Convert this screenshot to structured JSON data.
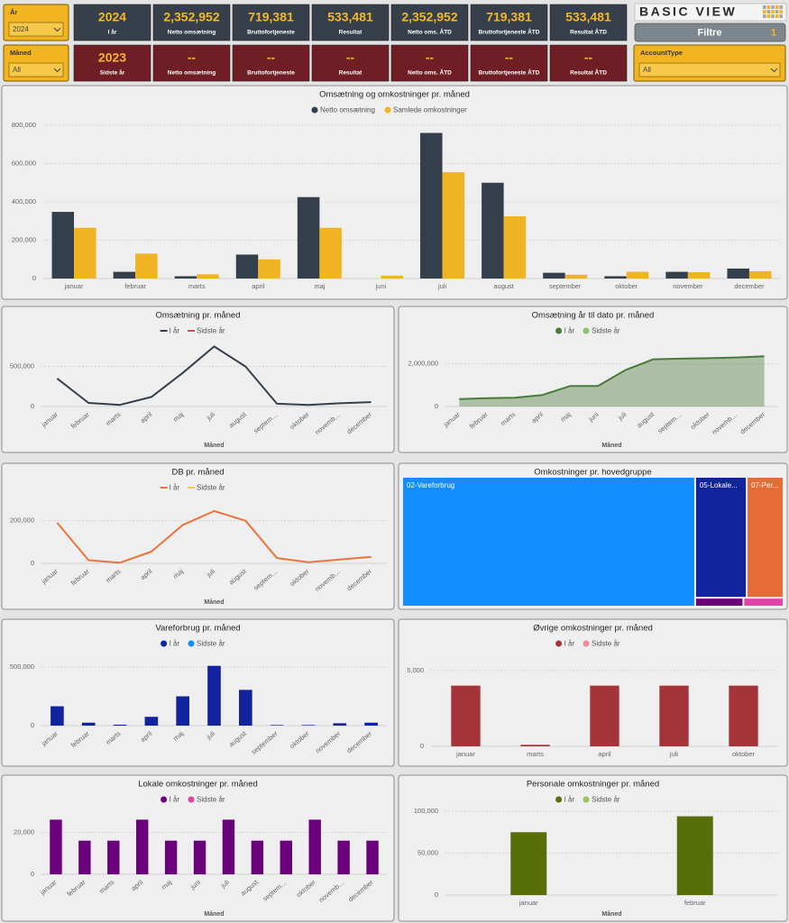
{
  "slicers": [
    {
      "label": "År",
      "value": "2024"
    },
    {
      "label": "Måned",
      "value": "All"
    },
    {
      "label": "AccountType",
      "value": "All"
    }
  ],
  "kpi_this_year": [
    {
      "value": "2024",
      "label": "I år"
    },
    {
      "value": "2,352,952",
      "label": "Netto omsætning"
    },
    {
      "value": "719,381",
      "label": "Bruttofortjeneste"
    },
    {
      "value": "533,481",
      "label": "Resultat"
    },
    {
      "value": "2,352,952",
      "label": "Netto oms. ÅTD"
    },
    {
      "value": "719,381",
      "label": "Bruttofortjeneste ÅTD"
    },
    {
      "value": "533,481",
      "label": "Resultat ÅTD"
    }
  ],
  "kpi_last_year": [
    {
      "value": "2023",
      "label": "Sidste år"
    },
    {
      "value": "--",
      "label": "Netto omsætning"
    },
    {
      "value": "--",
      "label": "Bruttofortjeneste"
    },
    {
      "value": "--",
      "label": "Resultat"
    },
    {
      "value": "--",
      "label": "Netto oms. ÅTD"
    },
    {
      "value": "--",
      "label": "Bruttofortjeneste ÅTD"
    },
    {
      "value": "--",
      "label": "Resultat ÅTD"
    }
  ],
  "logo": "BASIC VIEW",
  "filter_button": {
    "label": "Filtre",
    "count": "1"
  },
  "chart_data": [
    {
      "type": "bar",
      "title": "Omsætning og omkostninger pr. måned",
      "categories": [
        "januar",
        "februar",
        "marts",
        "april",
        "maj",
        "juni",
        "juli",
        "august",
        "september",
        "oktober",
        "november",
        "december"
      ],
      "series": [
        {
          "name": "Netto omsætning",
          "color": "#333f4b",
          "values": [
            348000,
            35000,
            12000,
            125000,
            425000,
            0,
            760000,
            500000,
            30000,
            12000,
            35000,
            52000
          ]
        },
        {
          "name": "Samlede omkostninger",
          "color": "#f0b323",
          "values": [
            265000,
            130000,
            22000,
            100000,
            265000,
            15000,
            555000,
            325000,
            20000,
            35000,
            33000,
            38000
          ]
        }
      ],
      "ylim": [
        0,
        800000
      ],
      "yticks": [
        0,
        {
          "value": 200000,
          "label": "200,000"
        },
        {
          "value": 400000,
          "label": "400,000"
        },
        {
          "value": 600000,
          "label": "600,000"
        },
        {
          "value": 800000,
          "label": "800,000"
        }
      ],
      "grid": true
    },
    {
      "type": "line",
      "title": "Omsætning pr. måned",
      "xlabel": "Måned",
      "categories": [
        "januar",
        "februar",
        "marts",
        "april",
        "maj",
        "juli",
        "august",
        "septem…",
        "oktober",
        "novemb…",
        "december"
      ],
      "series": [
        {
          "name": "I år",
          "color": "#333f4b",
          "values": [
            350000,
            45000,
            20000,
            120000,
            420000,
            750000,
            500000,
            35000,
            20000,
            40000,
            55000
          ]
        },
        {
          "name": "Sidste år",
          "color": "#d64550",
          "values": [
            null,
            null,
            null,
            null,
            null,
            null,
            null,
            null,
            null,
            null,
            null
          ]
        }
      ],
      "ylim": [
        0,
        800000
      ],
      "yticks": [
        0,
        {
          "value": 500000,
          "label": "500,000"
        }
      ],
      "grid": true
    },
    {
      "type": "area",
      "title": "Omsætning år til dato pr. måned",
      "xlabel": "Måned",
      "categories": [
        "januar",
        "februar",
        "marts",
        "april",
        "maj",
        "juni",
        "juli",
        "august",
        "septem…",
        "oktober",
        "novemb…",
        "december"
      ],
      "series": [
        {
          "name": "I år",
          "color": "#4a7a3a",
          "values": [
            350000,
            395000,
            415000,
            540000,
            965000,
            965000,
            1715000,
            2215000,
            2245000,
            2265000,
            2300000,
            2353000
          ]
        },
        {
          "name": "Sidste år",
          "color": "#8dc06b",
          "values": [
            null,
            null,
            null,
            null,
            null,
            null,
            null,
            null,
            null,
            null,
            null,
            null
          ]
        }
      ],
      "ylim": [
        0,
        3000000
      ],
      "yticks": [
        0,
        {
          "value": 2000000,
          "label": "2,000,000"
        }
      ],
      "grid": true
    },
    {
      "type": "line",
      "title": "DB pr. måned",
      "xlabel": "Måned",
      "categories": [
        "januar",
        "februar",
        "marts",
        "april",
        "maj",
        "juli",
        "august",
        "septem…",
        "oktober",
        "novemb…",
        "december"
      ],
      "series": [
        {
          "name": "I år",
          "color": "#e8743b",
          "values": [
            190000,
            15000,
            3000,
            55000,
            180000,
            245000,
            200000,
            25000,
            5000,
            18000,
            30000
          ]
        },
        {
          "name": "Sidste år",
          "color": "#f2c94c",
          "values": [
            null,
            null,
            null,
            null,
            null,
            null,
            null,
            null,
            null,
            null,
            null
          ]
        }
      ],
      "ylim": [
        0,
        300000
      ],
      "yticks": [
        0,
        {
          "value": 200000,
          "label": "200,000"
        }
      ],
      "grid": true
    },
    {
      "type": "treemap",
      "title": "Omkostninger pr. hovedgruppe",
      "labels": [
        "02-Vareforbrug",
        "05-Lokale...",
        "07-Per...",
        null,
        null
      ],
      "values": [
        1330000,
        216000,
        160000,
        15000,
        13000
      ],
      "colors": [
        "#118dff",
        "#12239e",
        "#e66c37",
        "#6b007b",
        "#e044a7"
      ]
    },
    {
      "type": "bar",
      "title": "Vareforbrug pr. måned",
      "categories": [
        "januar",
        "februar",
        "marts",
        "april",
        "maj",
        "juli",
        "august",
        "september",
        "oktober",
        "november",
        "december"
      ],
      "series": [
        {
          "name": "I år",
          "color": "#12239e",
          "values": [
            165000,
            25000,
            8000,
            75000,
            250000,
            510000,
            305000,
            5000,
            5000,
            20000,
            25000
          ]
        },
        {
          "name": "Sidste år",
          "color": "#118dff",
          "values": [
            null,
            null,
            null,
            null,
            null,
            null,
            null,
            null,
            null,
            null,
            null
          ]
        }
      ],
      "ylim": [
        0,
        600000
      ],
      "yticks": [
        0,
        {
          "value": 500000,
          "label": "500,000"
        }
      ],
      "grid": true
    },
    {
      "type": "bar",
      "title": "Øvrige omkostninger pr. måned",
      "categories": [
        "januar",
        "marts",
        "april",
        "juli",
        "oktober"
      ],
      "series": [
        {
          "name": "I år",
          "color": "#a4343a",
          "values": [
            4000,
            100,
            4000,
            4000,
            4000
          ]
        },
        {
          "name": "Sidste år",
          "color": "#e8909a",
          "values": [
            null,
            null,
            null,
            null,
            null
          ]
        }
      ],
      "ylim": [
        0,
        6000
      ],
      "yticks": [
        0,
        {
          "value": 5000,
          "label": "5,000"
        }
      ],
      "grid": true
    },
    {
      "type": "bar",
      "title": "Lokale omkostninger pr. måned",
      "xlabel": "Måned",
      "categories": [
        "januar",
        "februar",
        "marts",
        "april",
        "maj",
        "juni",
        "juli",
        "august",
        "septem…",
        "oktober",
        "novemb…",
        "december"
      ],
      "series": [
        {
          "name": "I år",
          "color": "#6b007b",
          "values": [
            26000,
            16000,
            16000,
            26000,
            16000,
            16000,
            26000,
            16000,
            16000,
            26000,
            16000,
            16000
          ]
        },
        {
          "name": "Sidste år",
          "color": "#e044a7",
          "values": [
            null,
            null,
            null,
            null,
            null,
            null,
            null,
            null,
            null,
            null,
            null,
            null
          ]
        }
      ],
      "ylim": [
        0,
        30000
      ],
      "yticks": [
        0,
        {
          "value": 20000,
          "label": "20,000"
        }
      ],
      "grid": true
    },
    {
      "type": "bar",
      "title": "Personale omkostninger pr. måned",
      "xlabel": "Måned",
      "categories": [
        "januar",
        "februar"
      ],
      "series": [
        {
          "name": "I år",
          "color": "#586e0b",
          "values": [
            75000,
            94000
          ]
        },
        {
          "name": "Sidste år",
          "color": "#9bc35a",
          "values": [
            null,
            null
          ]
        }
      ],
      "ylim": [
        0,
        100000
      ],
      "yticks": [
        0,
        {
          "value": 50000,
          "label": "50,000"
        },
        {
          "value": 100000,
          "label": "100,000"
        }
      ],
      "grid": true
    }
  ]
}
